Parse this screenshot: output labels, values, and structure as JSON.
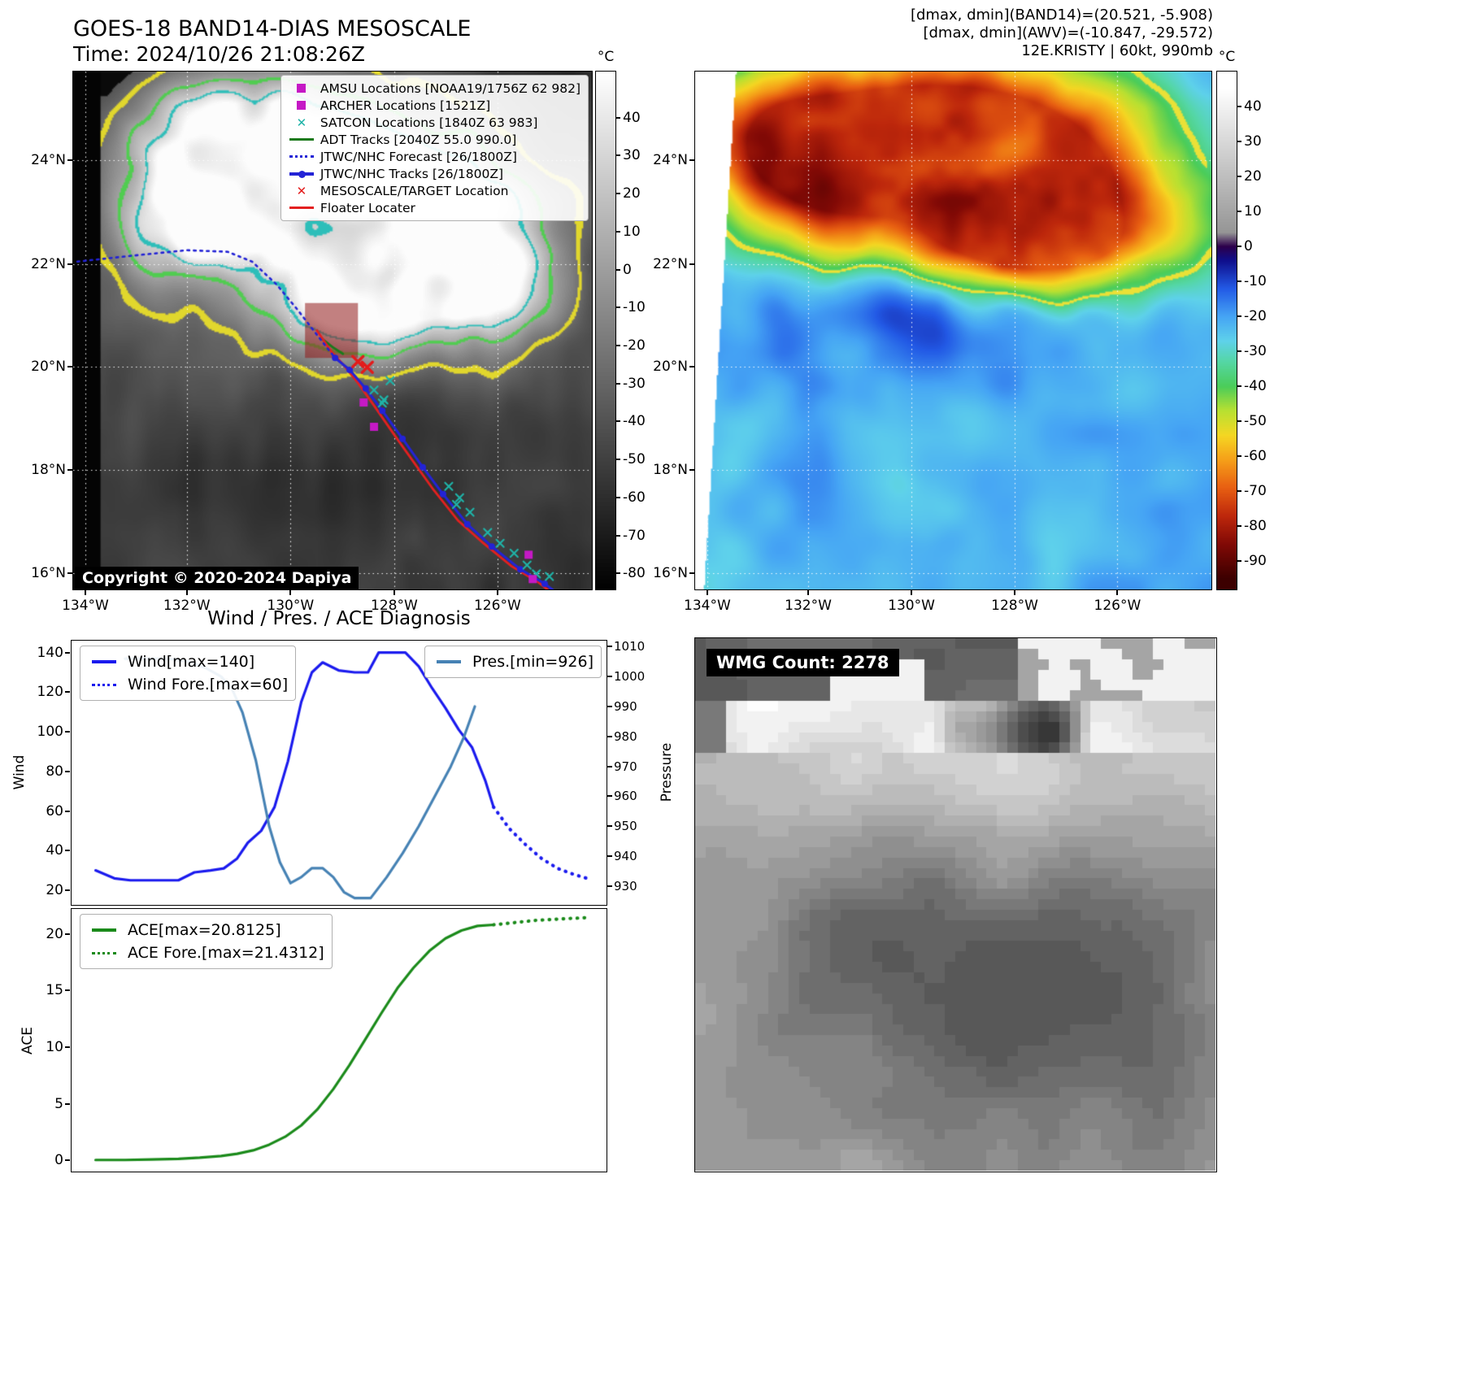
{
  "band14": {
    "title": "GOES-18 BAND14-DIAS MESOSCALE",
    "subtitle": "Time: 2024/10/26 21:08:26Z",
    "copyright": "Copyright © 2020-2024 Dapiya",
    "colorbar_unit": "°C",
    "colorbar_ticks": [
      40,
      30,
      20,
      10,
      0,
      -10,
      -20,
      -30,
      -40,
      -50,
      -60,
      -70,
      -80
    ],
    "x_ticks": [
      "134°W",
      "132°W",
      "130°W",
      "128°W",
      "126°W"
    ],
    "y_ticks": [
      "24°N",
      "22°N",
      "20°N",
      "18°N",
      "16°N"
    ],
    "legend": [
      {
        "label": "AMSU Locations [NOAA19/1756Z 62 982]",
        "marker": "square",
        "color": "#c519c5"
      },
      {
        "label": "ARCHER Locations [1521Z]",
        "marker": "square",
        "color": "#c519c5"
      },
      {
        "label": "SATCON Locations [1840Z 63 983]",
        "marker": "x",
        "color": "#1fb3a8"
      },
      {
        "label": "ADT Tracks [2040Z 55.0 990.0]",
        "marker": "line",
        "color": "#1c7a1c"
      },
      {
        "label": "JTWC/NHC Forecast [26/1800Z]",
        "marker": "dotted",
        "color": "#2323d6"
      },
      {
        "label": "JTWC/NHC Tracks [26/1800Z]",
        "marker": "linedot",
        "color": "#2323d6"
      },
      {
        "label": "MESOSCALE/TARGET Location",
        "marker": "x",
        "color": "#e31b1b"
      },
      {
        "label": "Floater Locater",
        "marker": "line",
        "color": "#e32020"
      }
    ],
    "overlays": {
      "target_box": [
        0.447,
        0.447,
        0.102,
        0.106
      ],
      "forecast_track": [
        [
          0.008,
          0.367
        ],
        [
          0.11,
          0.356
        ],
        [
          0.219,
          0.345
        ],
        [
          0.298,
          0.348
        ],
        [
          0.345,
          0.367
        ],
        [
          0.392,
          0.411
        ],
        [
          0.431,
          0.458
        ],
        [
          0.462,
          0.498
        ],
        [
          0.486,
          0.529
        ],
        [
          0.505,
          0.553
        ]
      ],
      "jtwc_track": [
        [
          0.505,
          0.553
        ],
        [
          0.533,
          0.576
        ],
        [
          0.564,
          0.612
        ],
        [
          0.596,
          0.655
        ],
        [
          0.635,
          0.709
        ],
        [
          0.674,
          0.764
        ],
        [
          0.713,
          0.816
        ],
        [
          0.76,
          0.874
        ],
        [
          0.807,
          0.917
        ],
        [
          0.862,
          0.961
        ],
        [
          0.909,
          0.989
        ],
        [
          0.95,
          1.02
        ]
      ],
      "floater_track": [
        [
          0.47,
          0.5
        ],
        [
          0.497,
          0.54
        ],
        [
          0.52,
          0.565
        ],
        [
          0.548,
          0.6
        ],
        [
          0.58,
          0.645
        ],
        [
          0.618,
          0.7
        ],
        [
          0.657,
          0.755
        ],
        [
          0.695,
          0.808
        ],
        [
          0.742,
          0.867
        ],
        [
          0.79,
          0.91
        ],
        [
          0.845,
          0.955
        ],
        [
          0.895,
          0.985
        ],
        [
          0.94,
          1.02
        ]
      ],
      "adt_track": [
        [
          0.478,
          0.515
        ],
        [
          0.5,
          0.532
        ],
        [
          0.52,
          0.545
        ]
      ],
      "satcon_points": [
        [
          0.58,
          0.615
        ],
        [
          0.599,
          0.634
        ],
        [
          0.611,
          0.597
        ],
        [
          0.596,
          0.64
        ],
        [
          0.724,
          0.801
        ],
        [
          0.745,
          0.823
        ],
        [
          0.765,
          0.851
        ],
        [
          0.739,
          0.836
        ],
        [
          0.799,
          0.89
        ],
        [
          0.823,
          0.911
        ],
        [
          0.875,
          0.953
        ],
        [
          0.893,
          0.97
        ],
        [
          0.85,
          0.93
        ],
        [
          0.918,
          0.975
        ]
      ],
      "amsu_points": [
        [
          0.56,
          0.639
        ],
        [
          0.878,
          0.933
        ]
      ],
      "archer_points": [
        [
          0.58,
          0.686
        ],
        [
          0.886,
          0.98
        ]
      ],
      "meso_points": [
        [
          0.549,
          0.56
        ],
        [
          0.567,
          0.571
        ]
      ]
    }
  },
  "awv": {
    "header_lines": [
      "[dmax, dmin](BAND14)=(20.521, -5.908)",
      "[dmax, dmin](AWV)=(-10.847, -29.572)",
      "12E.KRISTY | 60kt, 990mb"
    ],
    "colorbar_unit": "°C",
    "colorbar_ticks": [
      40,
      30,
      20,
      10,
      0,
      -10,
      -20,
      -30,
      -40,
      -50,
      -60,
      -70,
      -80,
      -90
    ],
    "x_ticks": [
      "134°W",
      "132°W",
      "130°W",
      "128°W",
      "126°W"
    ],
    "y_ticks": [
      "24°N",
      "22°N",
      "20°N",
      "18°N",
      "16°N"
    ]
  },
  "wmg": {
    "label": "WMG Count: 2278"
  },
  "chart_data": [
    {
      "type": "line",
      "title": "Wind / Pres. / ACE Diagnosis",
      "ylabel": "Wind",
      "ylabel_right": "Pressure",
      "ylim": [
        13,
        146
      ],
      "ylim_right": [
        924,
        1012
      ],
      "yticks": [
        20,
        40,
        60,
        80,
        100,
        120,
        140
      ],
      "yticks_right": [
        930,
        940,
        950,
        960,
        970,
        980,
        990,
        1000,
        1010
      ],
      "xlim": [
        0,
        1
      ],
      "grid": false,
      "series": [
        {
          "name": "Wind[max=140]",
          "color": "#1a1aee",
          "style": "solid",
          "axis": "left",
          "x": [
            0.045,
            0.08,
            0.11,
            0.14,
            0.17,
            0.2,
            0.23,
            0.26,
            0.285,
            0.31,
            0.33,
            0.355,
            0.38,
            0.405,
            0.43,
            0.45,
            0.47,
            0.5,
            0.53,
            0.555,
            0.575,
            0.6,
            0.625,
            0.65,
            0.675,
            0.7,
            0.725,
            0.75,
            0.775,
            0.79
          ],
          "values": [
            30,
            26,
            25,
            25,
            25,
            25,
            29,
            30,
            31,
            36,
            44,
            50,
            62,
            85,
            115,
            130,
            135,
            131,
            130,
            130,
            140,
            140,
            140,
            133,
            122,
            112,
            101,
            92,
            75,
            62
          ]
        },
        {
          "name": "Wind Fore.[max=60]",
          "color": "#1a1aee",
          "style": "dotted",
          "axis": "left",
          "x": [
            0.79,
            0.82,
            0.85,
            0.88,
            0.91,
            0.94,
            0.965
          ],
          "values": [
            62,
            51,
            43,
            36,
            31,
            28,
            26
          ]
        },
        {
          "name": "Pres.[min=926]",
          "color": "#4682b4",
          "style": "solid",
          "axis": "right",
          "x": [
            0.1,
            0.14,
            0.18,
            0.22,
            0.25,
            0.28,
            0.3,
            0.32,
            0.345,
            0.37,
            0.39,
            0.41,
            0.43,
            0.45,
            0.47,
            0.49,
            0.51,
            0.53,
            0.56,
            0.59,
            0.62,
            0.65,
            0.68,
            0.71,
            0.735,
            0.755
          ],
          "values": [
            1006,
            1006,
            1006,
            1005,
            1003,
            1000,
            996,
            988,
            972,
            950,
            938,
            931,
            933,
            936,
            936,
            933,
            928,
            926,
            926,
            933,
            941,
            950,
            960,
            970,
            980,
            990
          ]
        }
      ]
    },
    {
      "type": "line",
      "ylabel": "ACE",
      "ylim": [
        -0.9,
        22.2
      ],
      "yticks": [
        0,
        5,
        10,
        15,
        20
      ],
      "xlim": [
        0,
        1
      ],
      "grid": false,
      "series": [
        {
          "name": "ACE[max=20.8125]",
          "color": "#1a8a1a",
          "style": "solid",
          "axis": "left",
          "x": [
            0.045,
            0.1,
            0.15,
            0.2,
            0.24,
            0.28,
            0.31,
            0.34,
            0.37,
            0.4,
            0.43,
            0.46,
            0.49,
            0.52,
            0.55,
            0.58,
            0.61,
            0.64,
            0.67,
            0.7,
            0.73,
            0.76,
            0.79
          ],
          "values": [
            0.05,
            0.05,
            0.1,
            0.15,
            0.25,
            0.4,
            0.6,
            0.9,
            1.4,
            2.1,
            3.1,
            4.5,
            6.3,
            8.4,
            10.7,
            13.0,
            15.2,
            17.0,
            18.5,
            19.6,
            20.3,
            20.7,
            20.8
          ]
        },
        {
          "name": "ACE Fore.[max=21.4312]",
          "color": "#1a8a1a",
          "style": "dotted",
          "axis": "left",
          "x": [
            0.79,
            0.83,
            0.87,
            0.91,
            0.95,
            0.97
          ],
          "values": [
            20.8,
            21.0,
            21.2,
            21.3,
            21.4,
            21.43
          ]
        }
      ]
    }
  ]
}
